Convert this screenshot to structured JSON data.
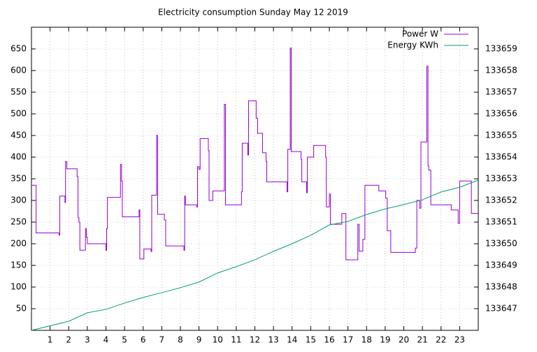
{
  "chart_data": {
    "type": "line",
    "title": "Electricity consumption Sunday May 12 2019",
    "xlim": [
      0,
      24
    ],
    "xticks": [
      1,
      2,
      3,
      4,
      5,
      6,
      7,
      8,
      9,
      10,
      11,
      12,
      13,
      14,
      15,
      16,
      17,
      18,
      19,
      20,
      21,
      22,
      23
    ],
    "ylim": [
      0,
      700
    ],
    "yticks": [
      50,
      100,
      150,
      200,
      250,
      300,
      350,
      400,
      450,
      500,
      550,
      600,
      650
    ],
    "y2lim": [
      133646,
      133660
    ],
    "y2ticks": [
      133647,
      133648,
      133649,
      133650,
      133651,
      133652,
      133653,
      133654,
      133655,
      133656,
      133657,
      133658,
      133659
    ],
    "grid": true,
    "legend": "top-right",
    "series": [
      {
        "name": "Power W",
        "color": "#9400d3",
        "step": true,
        "x": [
          0,
          0.25,
          1.48,
          1.52,
          1.8,
          1.83,
          1.9,
          2.45,
          2.5,
          2.55,
          2.6,
          2.9,
          2.95,
          3.0,
          4.0,
          4.04,
          4.08,
          4.78,
          4.84,
          4.88,
          5.78,
          5.82,
          6.04,
          6.42,
          6.46,
          6.72,
          6.78,
          7.14,
          7.21,
          8.19,
          8.23,
          8.27,
          8.87,
          8.92,
          9.0,
          9.06,
          9.5,
          9.54,
          9.74,
          10.36,
          10.42,
          11.28,
          11.32,
          11.62,
          11.66,
          12.07,
          12.15,
          12.41,
          12.6,
          12.64,
          13.73,
          13.77,
          13.9,
          13.95,
          14.48,
          14.52,
          14.78,
          14.82,
          15.16,
          15.8,
          15.84,
          16.0,
          16.06,
          16.67,
          16.89,
          17.53,
          17.6,
          17.8,
          17.91,
          18.66,
          19.03,
          19.11,
          19.3,
          20.62,
          20.7,
          20.85,
          20.92,
          21.24,
          21.3,
          21.34,
          21.45,
          22.55,
          22.92,
          23.0,
          23.63
        ],
        "values": [
          335,
          225,
          220,
          310,
          295,
          390,
          373,
          355,
          260,
          250,
          185,
          235,
          215,
          200,
          185,
          235,
          307,
          383,
          345,
          262,
          278,
          165,
          188,
          182,
          312,
          450,
          268,
          255,
          195,
          185,
          310,
          290,
          285,
          378,
          372,
          443,
          415,
          300,
          322,
          522,
          290,
          320,
          432,
          405,
          530,
          490,
          455,
          410,
          390,
          343,
          320,
          418,
          652,
          413,
          395,
          343,
          318,
          400,
          427,
          400,
          285,
          315,
          245,
          270,
          163,
          245,
          183,
          210,
          335,
          322,
          305,
          230,
          180,
          190,
          300,
          282,
          435,
          610,
          380,
          370,
          290,
          278,
          247,
          345,
          270
        ]
      },
      {
        "name": "Energy KWh",
        "color": "#009e73",
        "axis": "y2",
        "x": [
          0,
          2,
          3,
          4,
          5,
          6,
          7,
          8,
          9,
          10,
          11,
          12,
          13,
          14,
          15,
          16,
          17,
          18,
          19,
          20,
          21,
          22,
          23,
          24
        ],
        "values": [
          133646.0,
          133646.42,
          133646.81,
          133646.97,
          133647.26,
          133647.52,
          133647.74,
          133647.97,
          133648.23,
          133648.65,
          133648.94,
          133649.26,
          133649.65,
          133650.0,
          133650.39,
          133650.87,
          133651.03,
          133651.35,
          133651.61,
          133651.81,
          133652.03,
          133652.39,
          133652.61,
          133652.94
        ]
      }
    ]
  }
}
